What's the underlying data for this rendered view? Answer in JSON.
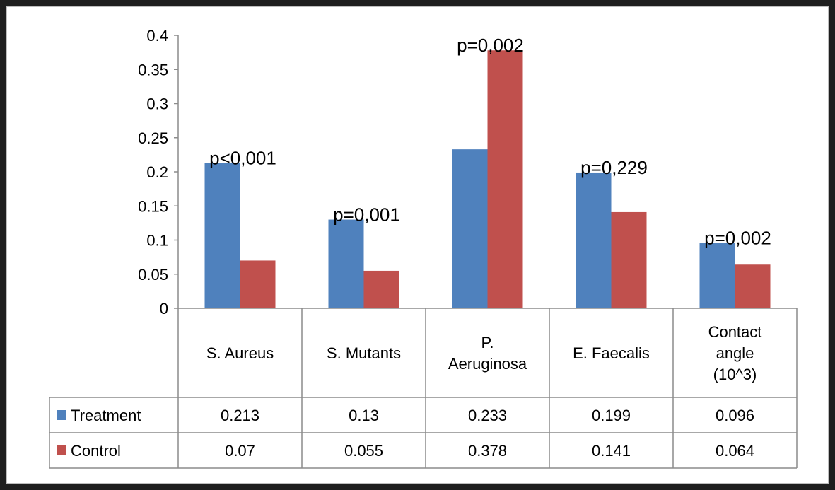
{
  "chart_data": {
    "type": "bar",
    "title": "",
    "xlabel": "",
    "ylabel": "",
    "ylim": [
      0,
      0.4
    ],
    "yticks": [
      "0",
      "0.05",
      "0.1",
      "0.15",
      "0.2",
      "0.25",
      "0.3",
      "0.35",
      "0.4"
    ],
    "ytick_values": [
      0,
      0.05,
      0.1,
      0.15,
      0.2,
      0.25,
      0.3,
      0.35,
      0.4
    ],
    "grid": false,
    "legend": "data-table-left",
    "categories": [
      [
        "S. Aureus"
      ],
      [
        "S. Mutants"
      ],
      [
        "P.",
        "Aeruginosa"
      ],
      [
        "E. Faecalis"
      ],
      [
        "Contact",
        "angle",
        "(10^3)"
      ]
    ],
    "series": [
      {
        "name": "Treatment",
        "color": "#4f81bd",
        "values": [
          0.213,
          0.13,
          0.233,
          0.199,
          0.096
        ],
        "labels": [
          "0.213",
          "0.13",
          "0.233",
          "0.199",
          "0.096"
        ]
      },
      {
        "name": "Control",
        "color": "#c0504d",
        "values": [
          0.07,
          0.055,
          0.378,
          0.141,
          0.064
        ],
        "labels": [
          "0.07",
          "0.055",
          "0.378",
          "0.141",
          "0.064"
        ]
      }
    ],
    "annotations": [
      "p<0,001",
      "p=0,001",
      "p=0,002",
      "p=0,229",
      "p=0,002"
    ]
  }
}
